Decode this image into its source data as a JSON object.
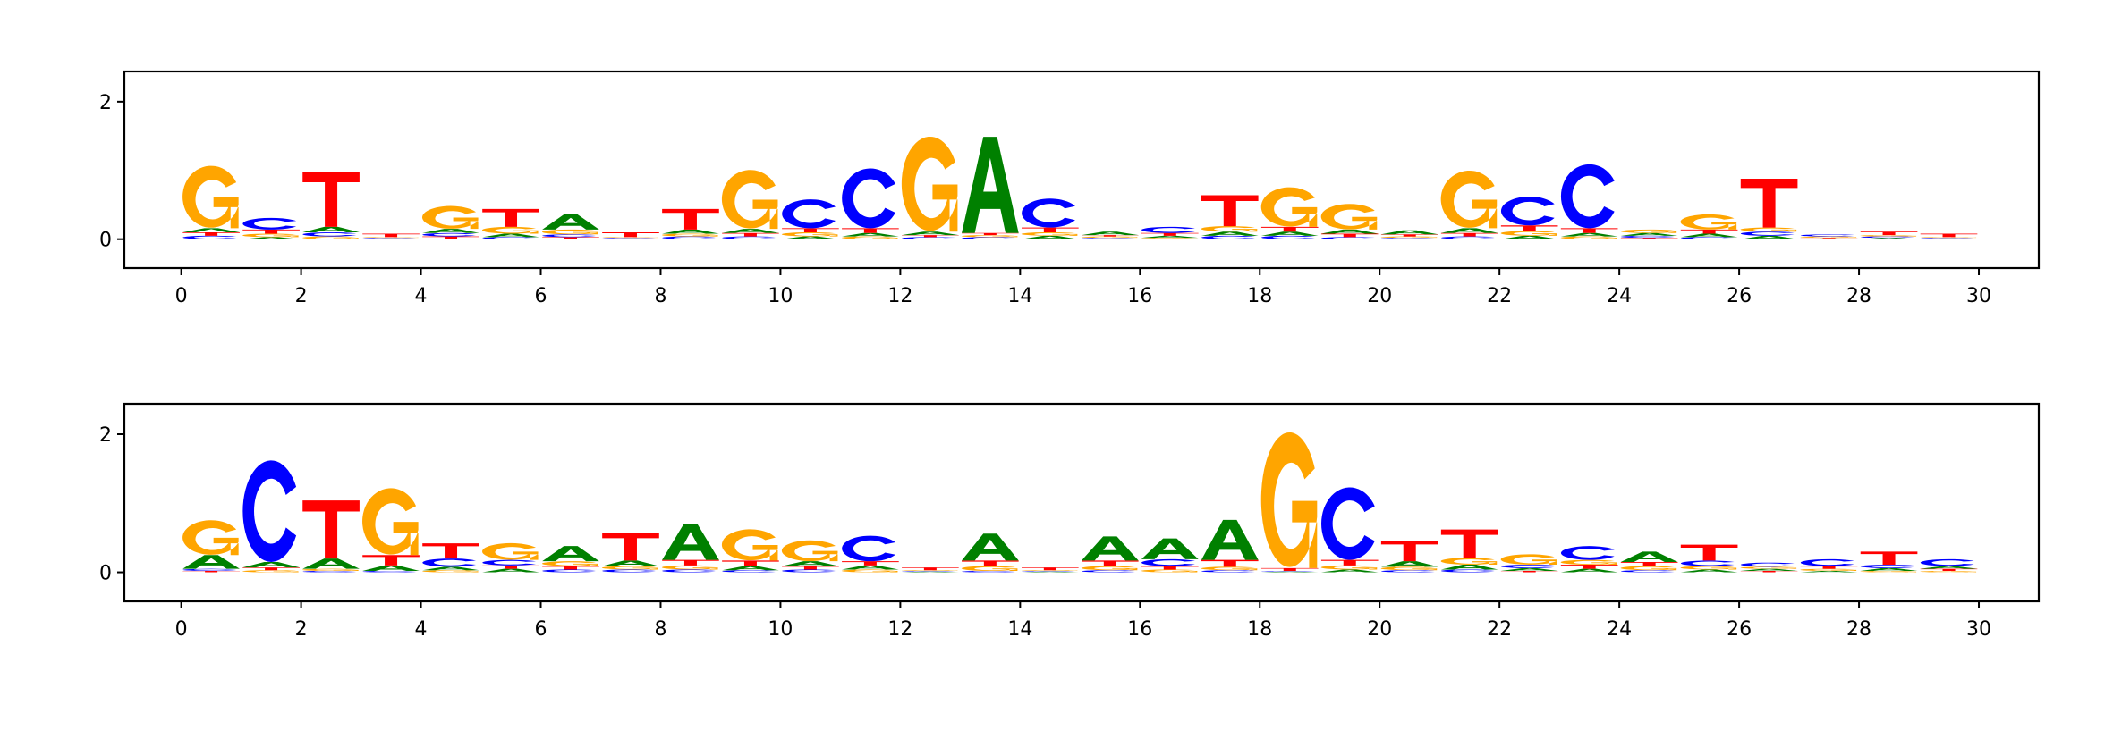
{
  "colors": {
    "A": "#008000",
    "C": "#0000ff",
    "G": "#ffa500",
    "T": "#ff0000"
  },
  "chart_data": [
    {
      "type": "sequence-logo",
      "xlim": [
        -0.95,
        31
      ],
      "ylim": [
        -0.42,
        2.44
      ],
      "xticks": [
        0,
        2,
        4,
        6,
        8,
        10,
        12,
        14,
        16,
        18,
        20,
        22,
        24,
        26,
        28,
        30
      ],
      "yticks": [
        0,
        2
      ],
      "positions": [
        {
          "A": 0.06,
          "C": 0.05,
          "G": 0.9,
          "T": 0.05
        },
        {
          "A": 0.03,
          "C": 0.17,
          "G": 0.05,
          "T": 0.06
        },
        {
          "A": 0.08,
          "C": 0.06,
          "G": 0.04,
          "T": 0.8
        },
        {
          "A": 0.01,
          "C": 0.01,
          "G": 0.01,
          "T": 0.05
        },
        {
          "A": 0.06,
          "C": 0.05,
          "G": 0.33,
          "T": 0.04
        },
        {
          "A": 0.05,
          "C": 0.03,
          "G": 0.1,
          "T": 0.26
        },
        {
          "A": 0.22,
          "C": 0.04,
          "G": 0.07,
          "T": 0.03
        },
        {
          "A": 0.01,
          "C": 0.01,
          "G": 0.01,
          "T": 0.07
        },
        {
          "A": 0.06,
          "C": 0.04,
          "G": 0.04,
          "T": 0.3
        },
        {
          "A": 0.06,
          "C": 0.04,
          "G": 0.85,
          "T": 0.05
        },
        {
          "A": 0.04,
          "C": 0.42,
          "G": 0.06,
          "T": 0.06
        },
        {
          "A": 0.05,
          "C": 0.87,
          "G": 0.04,
          "T": 0.07
        },
        {
          "A": 0.05,
          "C": 0.03,
          "G": 1.37,
          "T": 0.03
        },
        {
          "A": 1.4,
          "C": 0.03,
          "G": 0.03,
          "T": 0.03
        },
        {
          "A": 0.05,
          "C": 0.42,
          "G": 0.05,
          "T": 0.07
        },
        {
          "A": 0.05,
          "C": 0.02,
          "G": 0.02,
          "T": 0.02
        },
        {
          "A": 0.03,
          "C": 0.09,
          "G": 0.02,
          "T": 0.04
        },
        {
          "A": 0.06,
          "C": 0.05,
          "G": 0.08,
          "T": 0.45
        },
        {
          "A": 0.06,
          "C": 0.05,
          "G": 0.57,
          "T": 0.07
        },
        {
          "A": 0.06,
          "C": 0.03,
          "G": 0.37,
          "T": 0.05
        },
        {
          "A": 0.06,
          "C": 0.02,
          "G": 0.02,
          "T": 0.03
        },
        {
          "A": 0.07,
          "C": 0.04,
          "G": 0.83,
          "T": 0.05
        },
        {
          "A": 0.05,
          "C": 0.42,
          "G": 0.07,
          "T": 0.08
        },
        {
          "A": 0.05,
          "C": 0.93,
          "G": 0.04,
          "T": 0.07
        },
        {
          "A": 0.04,
          "C": 0.03,
          "G": 0.05,
          "T": 0.02
        },
        {
          "A": 0.05,
          "C": 0.03,
          "G": 0.22,
          "T": 0.06
        },
        {
          "A": 0.05,
          "C": 0.06,
          "G": 0.06,
          "T": 0.71
        },
        {
          "A": 0.01,
          "C": 0.03,
          "G": 0.02,
          "T": 0.01
        },
        {
          "A": 0.02,
          "C": 0.02,
          "G": 0.02,
          "T": 0.05
        },
        {
          "A": 0.01,
          "C": 0.01,
          "G": 0.01,
          "T": 0.05
        }
      ]
    },
    {
      "type": "sequence-logo",
      "xlim": [
        -0.95,
        31
      ],
      "ylim": [
        -0.42,
        2.44
      ],
      "xticks": [
        0,
        2,
        4,
        6,
        8,
        10,
        12,
        14,
        16,
        18,
        20,
        22,
        24,
        26,
        28,
        30
      ],
      "yticks": [
        0,
        2
      ],
      "positions": [
        {
          "A": 0.2,
          "C": 0.03,
          "G": 0.5,
          "T": 0.02
        },
        {
          "A": 0.08,
          "C": 1.47,
          "G": 0.03,
          "T": 0.04
        },
        {
          "A": 0.15,
          "C": 0.02,
          "G": 0.03,
          "T": 0.84
        },
        {
          "A": 0.08,
          "C": 0.02,
          "G": 0.96,
          "T": 0.15
        },
        {
          "A": 0.05,
          "C": 0.12,
          "G": 0.03,
          "T": 0.22
        },
        {
          "A": 0.05,
          "C": 0.08,
          "G": 0.24,
          "T": 0.05
        },
        {
          "A": 0.22,
          "C": 0.04,
          "G": 0.07,
          "T": 0.05
        },
        {
          "A": 0.08,
          "C": 0.04,
          "G": 0.05,
          "T": 0.4
        },
        {
          "A": 0.52,
          "C": 0.04,
          "G": 0.06,
          "T": 0.08
        },
        {
          "A": 0.06,
          "C": 0.03,
          "G": 0.45,
          "T": 0.08
        },
        {
          "A": 0.07,
          "C": 0.04,
          "G": 0.3,
          "T": 0.05
        },
        {
          "A": 0.06,
          "C": 0.37,
          "G": 0.04,
          "T": 0.06
        },
        {
          "A": 0.01,
          "C": 0.01,
          "G": 0.01,
          "T": 0.04
        },
        {
          "A": 0.39,
          "C": 0.02,
          "G": 0.07,
          "T": 0.08
        },
        {
          "A": 0.01,
          "C": 0.01,
          "G": 0.01,
          "T": 0.04
        },
        {
          "A": 0.35,
          "C": 0.03,
          "G": 0.06,
          "T": 0.08
        },
        {
          "A": 0.3,
          "C": 0.1,
          "G": 0.04,
          "T": 0.05
        },
        {
          "A": 0.58,
          "C": 0.03,
          "G": 0.05,
          "T": 0.1
        },
        {
          "A": 0.01,
          "C": 0.01,
          "G": 1.95,
          "T": 0.04
        },
        {
          "A": 0.04,
          "C": 1.05,
          "G": 0.06,
          "T": 0.08
        },
        {
          "A": 0.08,
          "C": 0.03,
          "G": 0.05,
          "T": 0.3
        },
        {
          "A": 0.07,
          "C": 0.04,
          "G": 0.1,
          "T": 0.41
        },
        {
          "A": 0.04,
          "C": 0.05,
          "G": 0.15,
          "T": 0.02
        },
        {
          "A": 0.05,
          "C": 0.2,
          "G": 0.07,
          "T": 0.06
        },
        {
          "A": 0.15,
          "C": 0.03,
          "G": 0.06,
          "T": 0.06
        },
        {
          "A": 0.04,
          "C": 0.08,
          "G": 0.05,
          "T": 0.23
        },
        {
          "A": 0.03,
          "C": 0.06,
          "G": 0.03,
          "T": 0.02
        },
        {
          "A": 0.02,
          "C": 0.1,
          "G": 0.03,
          "T": 0.04
        },
        {
          "A": 0.04,
          "C": 0.05,
          "G": 0.02,
          "T": 0.19
        },
        {
          "A": 0.04,
          "C": 0.1,
          "G": 0.02,
          "T": 0.03
        }
      ]
    }
  ]
}
